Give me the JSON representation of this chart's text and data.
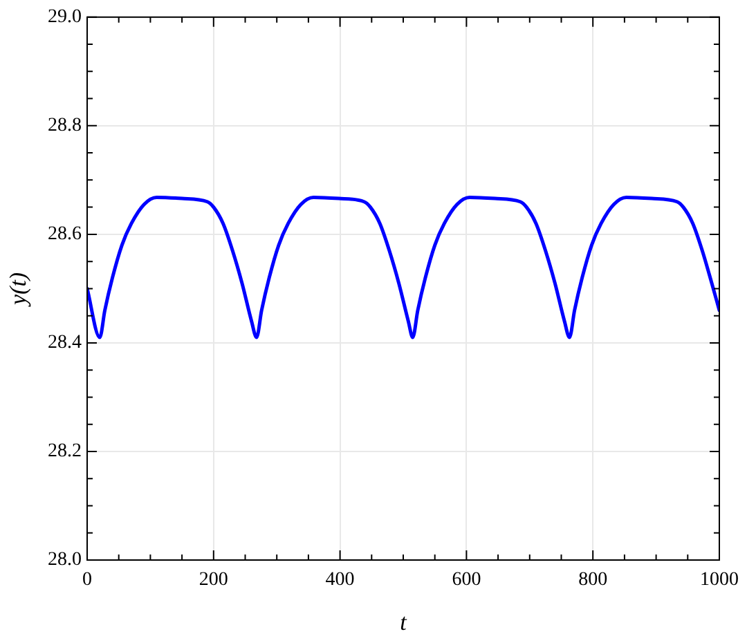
{
  "chart_data": {
    "type": "line",
    "xlabel": "t",
    "ylabel": "y(t)",
    "xlim": [
      0,
      1000
    ],
    "xticks": [
      0,
      200,
      400,
      600,
      800,
      1000
    ],
    "ylim": [
      28.0,
      29.0
    ],
    "yticks": [
      {
        "value": 28.0,
        "label": "28.0"
      },
      {
        "value": 28.2,
        "label": "28.2"
      },
      {
        "value": 28.4,
        "label": "28.4"
      },
      {
        "value": 28.6,
        "label": "28.6"
      },
      {
        "value": 28.8,
        "label": "28.8"
      },
      {
        "value": 29.0,
        "label": "29.0"
      }
    ],
    "grid": true,
    "marker": "none",
    "line_style": "solid",
    "series": [
      {
        "color": "#0000ff",
        "x": [
          0,
          20,
          28,
          40,
          55,
          70,
          90,
          110,
          150,
          190,
          200,
          215,
          230,
          245,
          260,
          268,
          276,
          288,
          303,
          318,
          338,
          358,
          398,
          438,
          448,
          463,
          478,
          493,
          508,
          515,
          523,
          535,
          550,
          565,
          585,
          605,
          645,
          685,
          695,
          710,
          725,
          740,
          755,
          763,
          771,
          783,
          798,
          813,
          833,
          853,
          893,
          933,
          943,
          958,
          973,
          988,
          1000
        ],
        "values": [
          28.5,
          28.41,
          28.46,
          28.52,
          28.58,
          28.62,
          28.655,
          28.668,
          28.666,
          28.66,
          28.65,
          28.62,
          28.57,
          28.51,
          28.44,
          28.41,
          28.46,
          28.52,
          28.58,
          28.62,
          28.655,
          28.668,
          28.666,
          28.66,
          28.65,
          28.62,
          28.57,
          28.51,
          28.44,
          28.41,
          28.46,
          28.52,
          28.58,
          28.62,
          28.655,
          28.668,
          28.666,
          28.66,
          28.65,
          28.62,
          28.57,
          28.51,
          28.44,
          28.41,
          28.46,
          28.52,
          28.58,
          28.62,
          28.655,
          28.668,
          28.666,
          28.66,
          28.65,
          28.62,
          28.57,
          28.51,
          28.46
        ]
      }
    ]
  }
}
